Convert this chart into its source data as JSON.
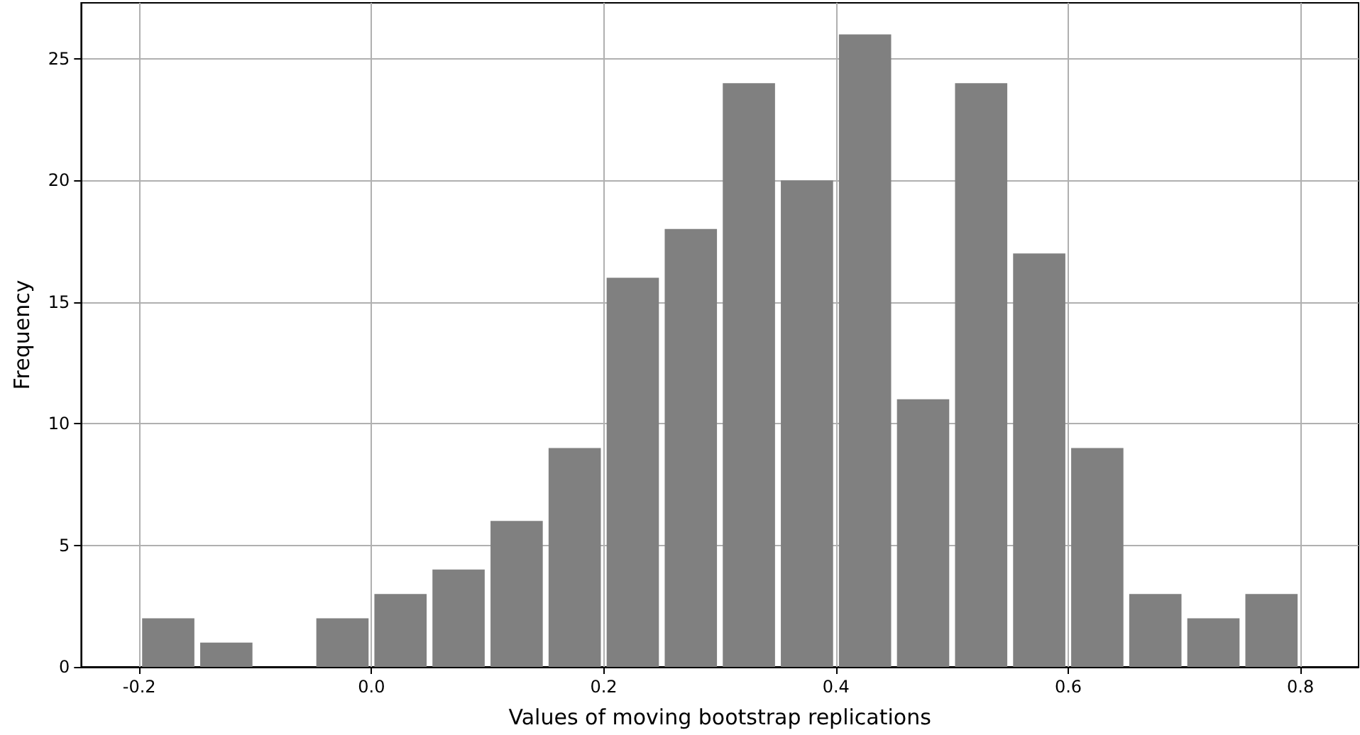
{
  "chart_data": {
    "type": "histogram",
    "xlabel": "Values of moving bootstrap replications",
    "ylabel": "Frequency",
    "bins": [
      -0.2,
      -0.15,
      -0.1,
      -0.05,
      0,
      0.05,
      0.1,
      0.15,
      0.2,
      0.25,
      0.3,
      0.35,
      0.4,
      0.45,
      0.5,
      0.55,
      0.6,
      0.65,
      0.7,
      0.75,
      0.8
    ],
    "values": [
      2,
      1,
      0,
      2,
      3,
      4,
      6,
      9,
      16,
      18,
      24,
      20,
      26,
      11,
      24,
      17,
      9,
      3,
      2,
      3
    ],
    "color": "#808080",
    "xlim": [
      -0.25,
      0.85
    ],
    "xticks": [
      -0.2,
      {
        "value": 0,
        "label": "0.0"
      },
      0.2,
      0.4,
      0.6,
      0.8
    ],
    "ylim": [
      0,
      27.3
    ],
    "yticks": [
      0,
      5,
      10,
      15,
      20,
      25
    ],
    "grid": true
  }
}
